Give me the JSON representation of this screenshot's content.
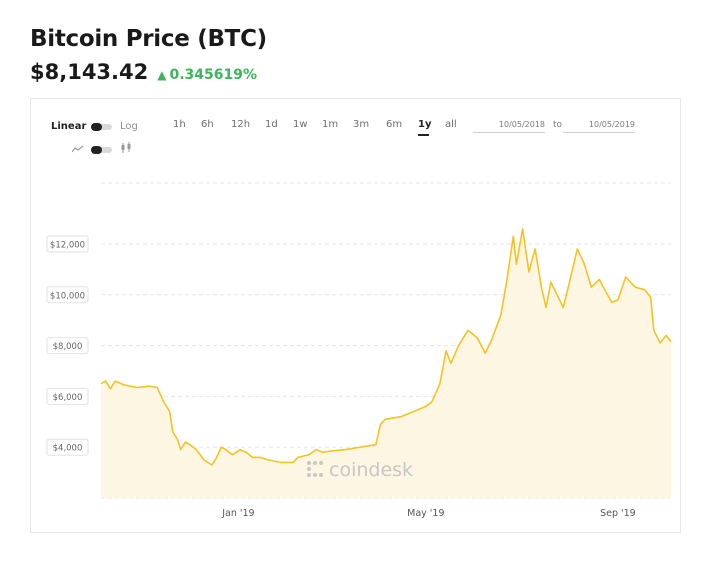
{
  "header": {
    "title": "Bitcoin Price (BTC)",
    "price": "$8,143.42",
    "change": "0.345619%"
  },
  "controls": {
    "scale_linear": "Linear",
    "scale_log": "Log",
    "ranges": [
      "1h",
      "6h",
      "12h",
      "1d",
      "1w",
      "1m",
      "3m",
      "6m",
      "1y",
      "all"
    ],
    "active_range": "1y",
    "date_from": "10/05/2018",
    "date_to_label": "to",
    "date_to": "10/05/2019",
    "line_icon": "line-chart-icon",
    "candle_icon": "candlestick-icon"
  },
  "watermark": {
    "text": "coindesk",
    "icon": "coindesk-logo-icon"
  },
  "colors": {
    "line": "#f3c324",
    "fill": "#fdf6e3",
    "change": "#3fb55b",
    "grid": "#e5e5e5"
  },
  "chart_data": {
    "type": "area",
    "title": "",
    "xlabel": "",
    "ylabel": "",
    "x_tick_labels": [
      "Jan '19",
      "May '19",
      "Sep '19"
    ],
    "x_tick_dates": [
      "2019-01-01",
      "2019-05-01",
      "2019-09-01"
    ],
    "y_tick_labels": [
      "$4,000",
      "$6,000",
      "$8,000",
      "$10,000",
      "$12,000"
    ],
    "y_ticks": [
      4000,
      6000,
      8000,
      10000,
      12000
    ],
    "xlim": [
      "2018-10-05",
      "2019-10-05"
    ],
    "ylim": [
      2000,
      14400
    ],
    "grid": true,
    "legend": "none",
    "series": [
      {
        "x": [
          "2018-10-05",
          "2018-10-08",
          "2018-10-11",
          "2018-10-14",
          "2018-10-20",
          "2018-10-28",
          "2018-11-05",
          "2018-11-10",
          "2018-11-14",
          "2018-11-16",
          "2018-11-18",
          "2018-11-20",
          "2018-11-23",
          "2018-11-25",
          "2018-11-28",
          "2018-12-01",
          "2018-12-05",
          "2018-12-10",
          "2018-12-15",
          "2018-12-18",
          "2018-12-21",
          "2018-12-24",
          "2018-12-28",
          "2019-01-02",
          "2019-01-06",
          "2019-01-10",
          "2019-01-15",
          "2019-01-20",
          "2019-01-28",
          "2019-02-05",
          "2019-02-08",
          "2019-02-15",
          "2019-02-20",
          "2019-02-24",
          "2019-03-01",
          "2019-03-10",
          "2019-03-20",
          "2019-03-30",
          "2019-04-02",
          "2019-04-05",
          "2019-04-15",
          "2019-04-23",
          "2019-05-01",
          "2019-05-05",
          "2019-05-10",
          "2019-05-14",
          "2019-05-17",
          "2019-05-22",
          "2019-05-28",
          "2019-06-03",
          "2019-06-08",
          "2019-06-12",
          "2019-06-18",
          "2019-06-22",
          "2019-06-26",
          "2019-06-28",
          "2019-07-02",
          "2019-07-06",
          "2019-07-10",
          "2019-07-14",
          "2019-07-17",
          "2019-07-20",
          "2019-07-24",
          "2019-07-28",
          "2019-08-01",
          "2019-08-06",
          "2019-08-10",
          "2019-08-15",
          "2019-08-20",
          "2019-08-28",
          "2019-09-01",
          "2019-09-06",
          "2019-09-12",
          "2019-09-18",
          "2019-09-22",
          "2019-09-24",
          "2019-09-28",
          "2019-10-02",
          "2019-10-05"
        ],
        "y": [
          6500,
          6600,
          6300,
          6600,
          6450,
          6350,
          6400,
          6350,
          5800,
          5600,
          5400,
          4600,
          4300,
          3900,
          4200,
          4100,
          3900,
          3500,
          3300,
          3600,
          4000,
          3900,
          3700,
          3900,
          3800,
          3600,
          3600,
          3500,
          3400,
          3400,
          3600,
          3700,
          3900,
          3800,
          3850,
          3900,
          4000,
          4100,
          4900,
          5100,
          5200,
          5400,
          5600,
          5800,
          6500,
          7800,
          7300,
          8000,
          8600,
          8300,
          7700,
          8200,
          9200,
          10600,
          12300,
          11200,
          12600,
          10900,
          11800,
          10300,
          9500,
          10500,
          10000,
          9500,
          10500,
          11800,
          11300,
          10300,
          10600,
          9700,
          9800,
          10700,
          10300,
          10200,
          9900,
          8600,
          8100,
          8400,
          8143
        ]
      }
    ]
  }
}
